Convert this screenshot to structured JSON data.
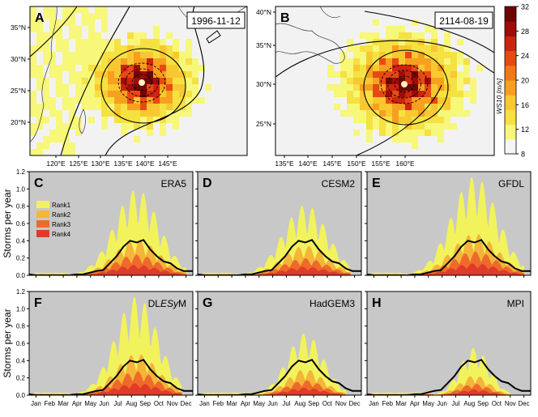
{
  "colors": {
    "panel_bg": "#c8c8c8",
    "map_bg": "#f2f2f2",
    "rank1": "#f2f25c",
    "rank2": "#f5b43a",
    "rank3": "#ee6a2a",
    "rank4": "#e03a2a",
    "mean_line": "#000000",
    "wind_scale": [
      "#f5f5f5",
      "#f7f77a",
      "#f5e142",
      "#f9c830",
      "#f7a020",
      "#f07818",
      "#e64a12",
      "#cc2410",
      "#a00c0c",
      "#6e0606"
    ]
  },
  "maps": [
    {
      "letter": "A",
      "date": "1996-11-12",
      "lon_ticks": [
        "120°E",
        "125°E",
        "130°E",
        "135°E",
        "140°E",
        "145°E"
      ],
      "lat_ticks": [
        "35°N",
        "30°N",
        "25°N",
        "20°N"
      ]
    },
    {
      "letter": "B",
      "date": "2114-08-19",
      "lon_ticks": [
        "135°E",
        "140°E",
        "145°E",
        "150°E",
        "155°E",
        "160°E"
      ],
      "lat_ticks": [
        "40°N",
        "35°N",
        "30°N",
        "25°N"
      ]
    }
  ],
  "colorbar": {
    "label": "WS10 [m/s]",
    "ticks": [
      "32",
      "28",
      "24",
      "20",
      "16",
      "12",
      "8"
    ],
    "min": 8,
    "max": 32
  },
  "legend": [
    "Rank1",
    "Rank2",
    "Rank3",
    "Rank4"
  ],
  "ylabel": "Storms per year",
  "chart_data": {
    "type": "area",
    "y_ticks": [
      "0.0",
      "0.2",
      "0.4",
      "0.6",
      "0.8",
      "1.0",
      "1.2"
    ],
    "ylim": [
      0,
      1.2
    ],
    "months": [
      "Jan",
      "Feb",
      "Mar",
      "Apr",
      "May",
      "Jun",
      "Jul",
      "Aug",
      "Sep",
      "Oct",
      "Nov",
      "Dec"
    ],
    "mean_curve_x": [
      0,
      15,
      30,
      45,
      60,
      75,
      90,
      105,
      120,
      135,
      150,
      165,
      180,
      195,
      210,
      225,
      240,
      255,
      270,
      285,
      300,
      315,
      330,
      345,
      365
    ],
    "mean_curve_y": [
      0.01,
      0.0,
      0.0,
      0.0,
      0.0,
      0.0,
      0.0,
      0.01,
      0.01,
      0.03,
      0.05,
      0.06,
      0.14,
      0.22,
      0.33,
      0.4,
      0.38,
      0.41,
      0.3,
      0.22,
      0.16,
      0.14,
      0.08,
      0.05,
      0.05
    ],
    "panels": [
      {
        "letter": "C",
        "name": "ERA5",
        "rank1_peak": 1.0,
        "start": 90,
        "end": 350
      },
      {
        "letter": "D",
        "name": "CESM2",
        "rank1_peak": 0.82,
        "start": 80,
        "end": 340
      },
      {
        "letter": "E",
        "name": "GFDL",
        "rank1_peak": 1.15,
        "start": 80,
        "end": 350
      },
      {
        "letter": "F",
        "name": "DLESyM",
        "rank1_peak": 1.15,
        "start": 90,
        "end": 340
      },
      {
        "letter": "G",
        "name": "HadGEM3",
        "rank1_peak": 0.72,
        "start": 120,
        "end": 330
      },
      {
        "letter": "H",
        "name": "MPI",
        "rank1_peak": 0.55,
        "start": 150,
        "end": 320
      }
    ]
  }
}
